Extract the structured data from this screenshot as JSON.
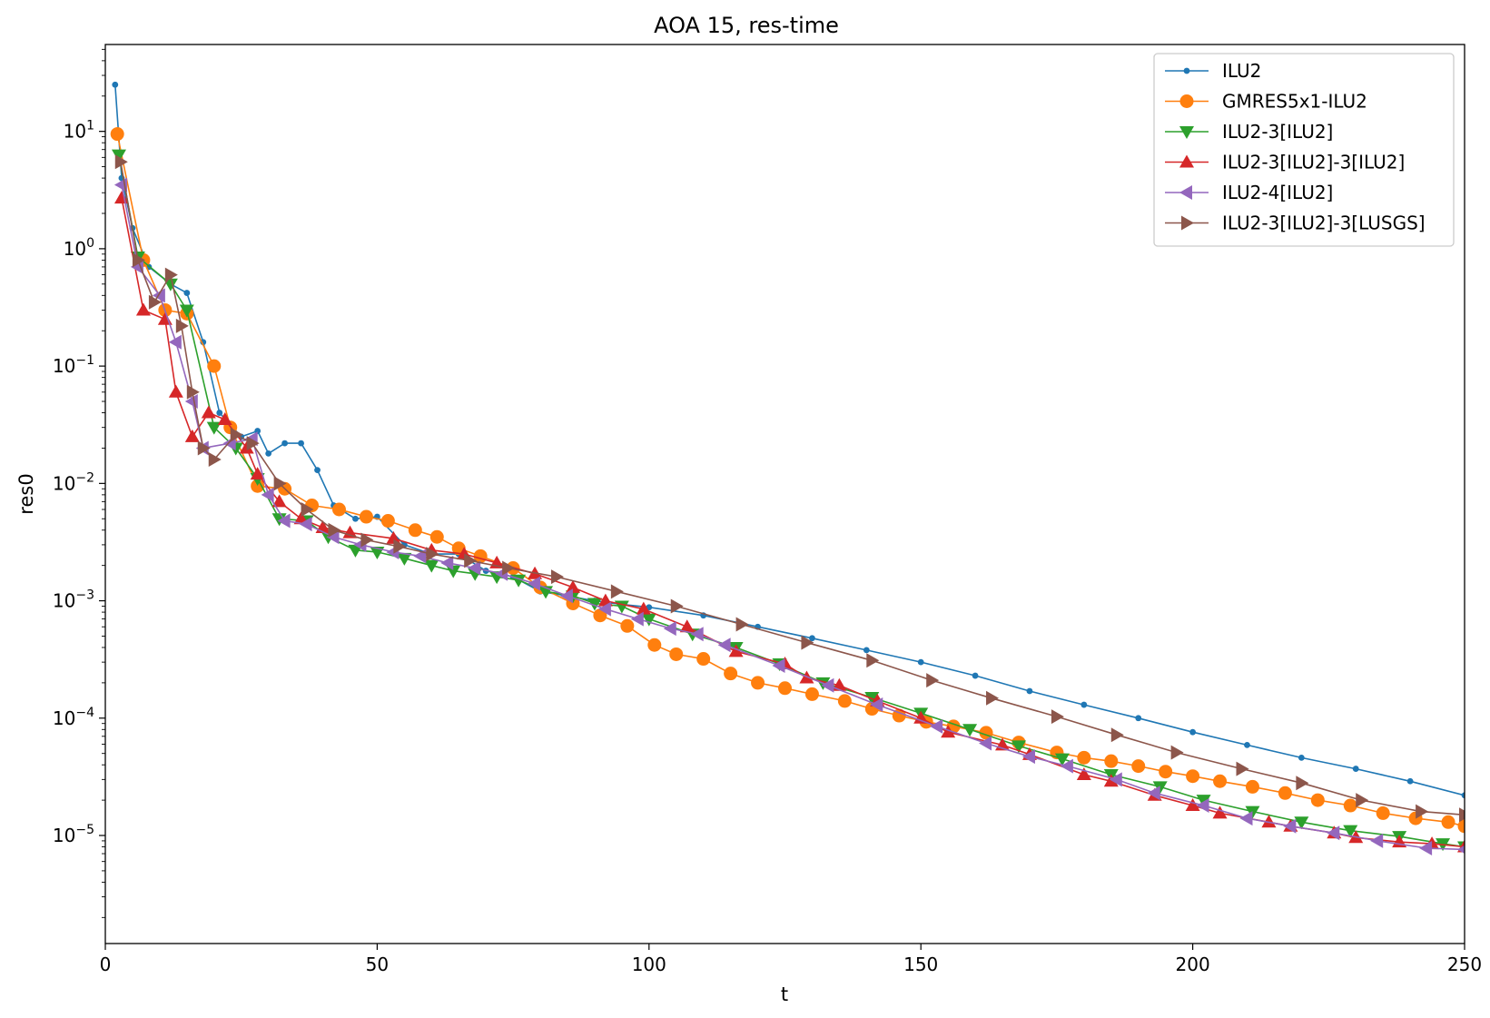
{
  "chart_data": {
    "type": "line",
    "title": "AOA 15, res-time",
    "xlabel": "t",
    "ylabel": "res0",
    "xlim": [
      0,
      250
    ],
    "ylim": [
      1.2e-06,
      55
    ],
    "yscale": "log",
    "x_ticks": [
      0,
      50,
      100,
      150,
      200,
      250
    ],
    "x_tick_labels": [
      "0",
      "50",
      "100",
      "150",
      "200",
      "250"
    ],
    "y_ticks": [
      {
        "value": 1e-05,
        "base": "10",
        "exp": "−5"
      },
      {
        "value": 0.0001,
        "base": "10",
        "exp": "−4"
      },
      {
        "value": 0.001,
        "base": "10",
        "exp": "−3"
      },
      {
        "value": 0.01,
        "base": "10",
        "exp": "−2"
      },
      {
        "value": 0.1,
        "base": "10",
        "exp": "−1"
      },
      {
        "value": 1,
        "base": "10",
        "exp": "0"
      },
      {
        "value": 10,
        "base": "10",
        "exp": "1"
      }
    ],
    "grid": false,
    "legend_position": "top-right",
    "series": [
      {
        "name": "ILU2",
        "color": "#1f77b4",
        "marker": "dot",
        "x": [
          1.8,
          3,
          5,
          8,
          12,
          15,
          18,
          21,
          25,
          28,
          30,
          33,
          36,
          39,
          42,
          46,
          50,
          55,
          60,
          65,
          70,
          75,
          80,
          85,
          90,
          95,
          100,
          110,
          120,
          130,
          140,
          150,
          160,
          170,
          180,
          190,
          200,
          210,
          220,
          230,
          240,
          250
        ],
        "y": [
          25,
          4,
          1.5,
          0.7,
          0.5,
          0.42,
          0.16,
          0.04,
          0.025,
          0.028,
          0.018,
          0.022,
          0.022,
          0.013,
          0.0065,
          0.005,
          0.0052,
          0.003,
          0.0025,
          0.0025,
          0.0018,
          0.0016,
          0.0012,
          0.0011,
          0.001,
          0.00093,
          0.00088,
          0.00075,
          0.0006,
          0.00048,
          0.00038,
          0.0003,
          0.00023,
          0.00017,
          0.00013,
          0.0001,
          7.6e-05,
          5.9e-05,
          4.6e-05,
          3.7e-05,
          2.9e-05,
          2.2e-05
        ]
      },
      {
        "name": "GMRES5x1-ILU2",
        "color": "#ff7f0e",
        "marker": "circle",
        "x": [
          2.2,
          7,
          11,
          15,
          20,
          23,
          28,
          33,
          38,
          43,
          48,
          52,
          57,
          61,
          65,
          69,
          75,
          80,
          86,
          91,
          96,
          101,
          105,
          110,
          115,
          120,
          125,
          130,
          136,
          141,
          146,
          151,
          156,
          162,
          168,
          175,
          180,
          185,
          190,
          195,
          200,
          205,
          211,
          217,
          223,
          229,
          235,
          241,
          247,
          250
        ],
        "y": [
          9.5,
          0.8,
          0.3,
          0.28,
          0.1,
          0.03,
          0.0095,
          0.009,
          0.0065,
          0.006,
          0.0052,
          0.0048,
          0.004,
          0.0035,
          0.0028,
          0.0024,
          0.0019,
          0.0013,
          0.00095,
          0.00075,
          0.00061,
          0.00042,
          0.00035,
          0.00032,
          0.00024,
          0.0002,
          0.00018,
          0.00016,
          0.00014,
          0.00012,
          0.000105,
          9.3e-05,
          8.5e-05,
          7.5e-05,
          6.2e-05,
          5.1e-05,
          4.6e-05,
          4.3e-05,
          3.9e-05,
          3.5e-05,
          3.2e-05,
          2.9e-05,
          2.6e-05,
          2.3e-05,
          2e-05,
          1.8e-05,
          1.55e-05,
          1.4e-05,
          1.3e-05,
          1.2e-05
        ]
      },
      {
        "name": "ILU2-3[ILU2]",
        "color": "#2ca02c",
        "marker": "triangle-down",
        "x": [
          2.5,
          6,
          12,
          15,
          20,
          24,
          28,
          32,
          37,
          41,
          46,
          50,
          55,
          60,
          64,
          68,
          72,
          76,
          81,
          86,
          90,
          95,
          100,
          108,
          116,
          124,
          132,
          141,
          150,
          159,
          168,
          176,
          185,
          194,
          202,
          211,
          220,
          229,
          238,
          246,
          250
        ],
        "y": [
          6.3,
          0.85,
          0.5,
          0.3,
          0.03,
          0.02,
          0.011,
          0.005,
          0.0048,
          0.0035,
          0.0027,
          0.0026,
          0.0023,
          0.002,
          0.0018,
          0.0017,
          0.0016,
          0.0015,
          0.0012,
          0.0011,
          0.00095,
          0.0009,
          0.0007,
          0.00052,
          0.0004,
          0.00029,
          0.0002,
          0.00015,
          0.00011,
          8e-05,
          5.8e-05,
          4.5e-05,
          3.3e-05,
          2.6e-05,
          2e-05,
          1.6e-05,
          1.3e-05,
          1.1e-05,
          9.8e-06,
          8.5e-06,
          8e-06
        ]
      },
      {
        "name": "ILU2-3[ILU2]-3[ILU2]",
        "color": "#d62728",
        "marker": "triangle-up",
        "x": [
          3,
          7,
          11,
          13,
          16,
          19,
          22,
          26,
          28,
          32,
          36,
          40,
          45,
          53,
          60,
          66,
          72,
          79,
          86,
          92,
          99,
          107,
          116,
          125,
          129,
          135,
          142,
          150,
          155,
          165,
          170,
          180,
          185,
          193,
          200,
          205,
          214,
          218,
          226,
          230,
          238,
          244,
          250
        ],
        "y": [
          2.7,
          0.3,
          0.25,
          0.06,
          0.025,
          0.04,
          0.035,
          0.02,
          0.012,
          0.007,
          0.005,
          0.0042,
          0.0038,
          0.0034,
          0.0027,
          0.0025,
          0.0021,
          0.0017,
          0.0013,
          0.001,
          0.00085,
          0.0006,
          0.00037,
          0.00029,
          0.00022,
          0.00019,
          0.00014,
          0.0001,
          7.6e-05,
          5.9e-05,
          4.9e-05,
          3.3e-05,
          2.9e-05,
          2.2e-05,
          1.8e-05,
          1.55e-05,
          1.3e-05,
          1.2e-05,
          1.05e-05,
          9.6e-06,
          8.8e-06,
          8.5e-06,
          8e-06
        ]
      },
      {
        "name": "ILU2-4[ILU2]",
        "color": "#9467bd",
        "marker": "triangle-left",
        "x": [
          3,
          6,
          10,
          13,
          16,
          18,
          23,
          27,
          30,
          33,
          37,
          42,
          47,
          53,
          58,
          63,
          68,
          73,
          79,
          85,
          92,
          98,
          104,
          109,
          114,
          124,
          133,
          142,
          153,
          162,
          170,
          177,
          186,
          193,
          202,
          210,
          218,
          226,
          234,
          243,
          250
        ],
        "y": [
          3.5,
          0.7,
          0.4,
          0.16,
          0.05,
          0.02,
          0.022,
          0.024,
          0.008,
          0.0048,
          0.0045,
          0.0035,
          0.003,
          0.0026,
          0.0024,
          0.0021,
          0.0019,
          0.0017,
          0.0014,
          0.0011,
          0.00085,
          0.0007,
          0.00058,
          0.00052,
          0.00042,
          0.00028,
          0.00019,
          0.00013,
          8.5e-05,
          6.1e-05,
          4.7e-05,
          3.9e-05,
          3e-05,
          2.3e-05,
          1.8e-05,
          1.4e-05,
          1.2e-05,
          1.05e-05,
          9e-06,
          7.8e-06,
          7.6e-06
        ]
      },
      {
        "name": "ILU2-3[ILU2]-3[LUSGS]",
        "color": "#8c564b",
        "marker": "triangle-right",
        "x": [
          2.8,
          6,
          9,
          12,
          14,
          16,
          18,
          20,
          24,
          27,
          32,
          37,
          42,
          48,
          54,
          60,
          67,
          74,
          83,
          94,
          105,
          117,
          129,
          141,
          152,
          163,
          175,
          186,
          197,
          209,
          220,
          231,
          242,
          250
        ],
        "y": [
          5.5,
          0.8,
          0.35,
          0.6,
          0.22,
          0.06,
          0.02,
          0.016,
          0.026,
          0.022,
          0.01,
          0.006,
          0.004,
          0.0033,
          0.0029,
          0.0025,
          0.0022,
          0.0019,
          0.0016,
          0.0012,
          0.0009,
          0.00063,
          0.00044,
          0.00031,
          0.00021,
          0.000148,
          0.000103,
          7.2e-05,
          5.1e-05,
          3.7e-05,
          2.8e-05,
          2e-05,
          1.6e-05,
          1.5e-05
        ]
      }
    ]
  }
}
